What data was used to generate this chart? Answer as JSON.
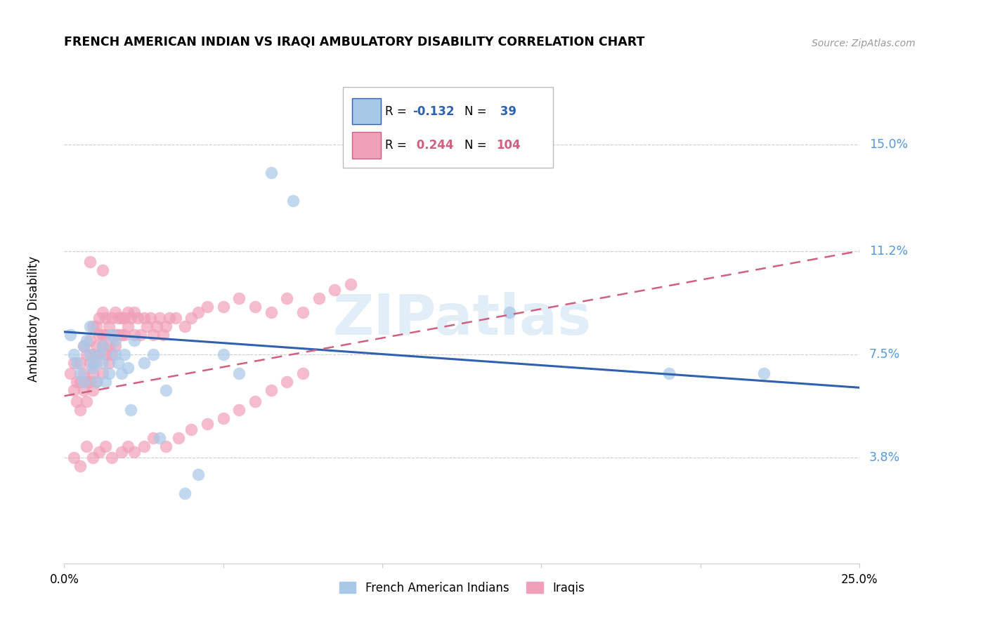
{
  "title": "FRENCH AMERICAN INDIAN VS IRAQI AMBULATORY DISABILITY CORRELATION CHART",
  "source": "Source: ZipAtlas.com",
  "ylabel": "Ambulatory Disability",
  "ytick_labels": [
    "15.0%",
    "11.2%",
    "7.5%",
    "3.8%"
  ],
  "ytick_values": [
    0.15,
    0.112,
    0.075,
    0.038
  ],
  "xlim": [
    0.0,
    0.25
  ],
  "ylim": [
    0.0,
    0.175
  ],
  "watermark": "ZIPatlas",
  "blue_color": "#a8c8e8",
  "pink_color": "#f0a0b8",
  "blue_line_color": "#3060b0",
  "pink_line_color": "#d06080",
  "grid_color": "#cccccc",
  "right_label_color": "#5599dd",
  "french_x": [
    0.002,
    0.003,
    0.004,
    0.005,
    0.006,
    0.006,
    0.007,
    0.008,
    0.008,
    0.009,
    0.009,
    0.01,
    0.011,
    0.012,
    0.012,
    0.013,
    0.014,
    0.015,
    0.016,
    0.016,
    0.017,
    0.018,
    0.019,
    0.02,
    0.021,
    0.022,
    0.025,
    0.028,
    0.03,
    0.032,
    0.038,
    0.042,
    0.05,
    0.055,
    0.065,
    0.072,
    0.14,
    0.19,
    0.22
  ],
  "french_y": [
    0.082,
    0.075,
    0.072,
    0.068,
    0.078,
    0.065,
    0.08,
    0.075,
    0.085,
    0.07,
    0.072,
    0.065,
    0.075,
    0.078,
    0.072,
    0.065,
    0.068,
    0.082,
    0.075,
    0.08,
    0.072,
    0.068,
    0.075,
    0.07,
    0.055,
    0.08,
    0.072,
    0.075,
    0.045,
    0.062,
    0.025,
    0.032,
    0.075,
    0.068,
    0.14,
    0.13,
    0.09,
    0.068,
    0.068
  ],
  "iraqi_x": [
    0.002,
    0.003,
    0.003,
    0.004,
    0.004,
    0.005,
    0.005,
    0.005,
    0.006,
    0.006,
    0.006,
    0.007,
    0.007,
    0.007,
    0.008,
    0.008,
    0.008,
    0.009,
    0.009,
    0.009,
    0.009,
    0.01,
    0.01,
    0.01,
    0.01,
    0.011,
    0.011,
    0.011,
    0.012,
    0.012,
    0.012,
    0.012,
    0.013,
    0.013,
    0.013,
    0.014,
    0.014,
    0.014,
    0.015,
    0.015,
    0.015,
    0.016,
    0.016,
    0.016,
    0.017,
    0.017,
    0.018,
    0.018,
    0.019,
    0.019,
    0.02,
    0.02,
    0.021,
    0.022,
    0.022,
    0.023,
    0.024,
    0.025,
    0.026,
    0.027,
    0.028,
    0.029,
    0.03,
    0.031,
    0.032,
    0.033,
    0.035,
    0.038,
    0.04,
    0.042,
    0.045,
    0.05,
    0.055,
    0.06,
    0.065,
    0.07,
    0.075,
    0.08,
    0.085,
    0.09,
    0.003,
    0.005,
    0.007,
    0.009,
    0.011,
    0.013,
    0.015,
    0.018,
    0.02,
    0.022,
    0.025,
    0.028,
    0.032,
    0.036,
    0.04,
    0.045,
    0.05,
    0.055,
    0.06,
    0.065,
    0.07,
    0.075,
    0.008,
    0.012
  ],
  "iraqi_y": [
    0.068,
    0.072,
    0.062,
    0.065,
    0.058,
    0.072,
    0.065,
    0.055,
    0.078,
    0.068,
    0.062,
    0.075,
    0.065,
    0.058,
    0.08,
    0.072,
    0.065,
    0.085,
    0.075,
    0.068,
    0.062,
    0.085,
    0.078,
    0.072,
    0.065,
    0.088,
    0.082,
    0.075,
    0.09,
    0.082,
    0.078,
    0.068,
    0.088,
    0.082,
    0.075,
    0.085,
    0.078,
    0.072,
    0.088,
    0.082,
    0.075,
    0.09,
    0.082,
    0.078,
    0.088,
    0.082,
    0.088,
    0.082,
    0.088,
    0.082,
    0.09,
    0.085,
    0.088,
    0.09,
    0.082,
    0.088,
    0.082,
    0.088,
    0.085,
    0.088,
    0.082,
    0.085,
    0.088,
    0.082,
    0.085,
    0.088,
    0.088,
    0.085,
    0.088,
    0.09,
    0.092,
    0.092,
    0.095,
    0.092,
    0.09,
    0.095,
    0.09,
    0.095,
    0.098,
    0.1,
    0.038,
    0.035,
    0.042,
    0.038,
    0.04,
    0.042,
    0.038,
    0.04,
    0.042,
    0.04,
    0.042,
    0.045,
    0.042,
    0.045,
    0.048,
    0.05,
    0.052,
    0.055,
    0.058,
    0.062,
    0.065,
    0.068,
    0.108,
    0.105
  ],
  "french_trend_x": [
    0.0,
    0.25
  ],
  "french_trend_y": [
    0.083,
    0.063
  ],
  "iraqi_trend_x": [
    0.0,
    0.25
  ],
  "iraqi_trend_y": [
    0.06,
    0.112
  ]
}
